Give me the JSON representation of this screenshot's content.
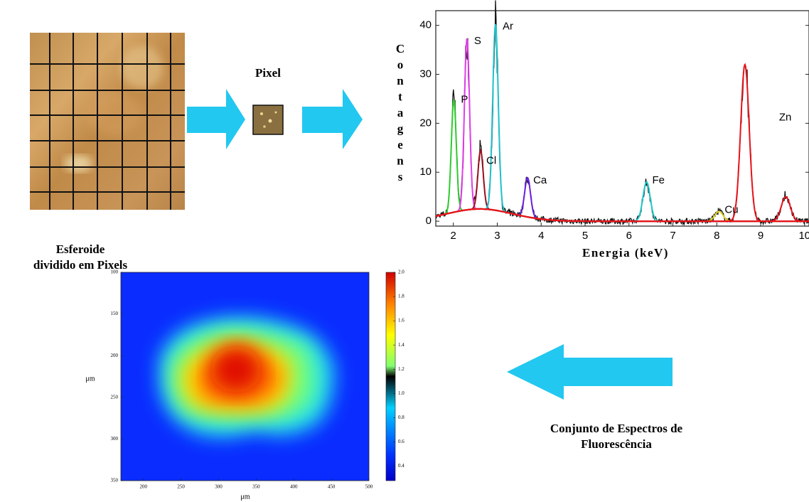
{
  "pixel_label": "Pixel",
  "spheroid_caption": [
    "Esferoide",
    "dividido em Pixels"
  ],
  "spectra_caption": [
    "Conjunto de Espectros de",
    "Fluorescência"
  ],
  "spectrum": {
    "type": "line",
    "y_label": "Contagens",
    "x_label": "Energia (keV)",
    "xlim": [
      1.6,
      10.1
    ],
    "ylim": [
      -1,
      43
    ],
    "xticks": [
      2,
      3,
      4,
      5,
      6,
      7,
      8,
      9,
      10
    ],
    "yticks": [
      0,
      10,
      20,
      30,
      40
    ],
    "background": {
      "energy": 2.6,
      "height": 2.5,
      "color": "#e8141a"
    },
    "peaks": [
      {
        "label": "P",
        "energy": 2.01,
        "height": 23,
        "color": "#2ecc2e"
      },
      {
        "label": "S",
        "energy": 2.31,
        "height": 35,
        "color": "#e040e8"
      },
      {
        "label": "Cl",
        "energy": 2.62,
        "height": 12,
        "color": "#9a1020"
      },
      {
        "label": "Ar",
        "energy": 2.96,
        "height": 38,
        "color": "#20c0c8"
      },
      {
        "label": "Ca",
        "energy": 3.69,
        "height": 8,
        "color": "#6a20e0"
      },
      {
        "label": "Fe",
        "energy": 6.4,
        "height": 8,
        "color": "#20c8c8"
      },
      {
        "label": "Cu",
        "energy": 8.05,
        "height": 2,
        "color": "#e0d020"
      },
      {
        "label": "Zn",
        "energy": 8.64,
        "height": 32,
        "color": "#e8141a"
      },
      {
        "label": null,
        "energy": 9.57,
        "height": 5,
        "color": "#e8141a"
      }
    ]
  },
  "heatmap": {
    "x_label": "μm",
    "y_label": "μm",
    "xlim": [
      170,
      500
    ],
    "ylim": [
      100,
      350
    ],
    "xticks": [
      200,
      250,
      300,
      350,
      400,
      450,
      500
    ],
    "yticks": [
      100,
      150,
      200,
      250,
      300,
      350
    ],
    "colorbar_lim": [
      0.28,
      2.0
    ],
    "colorbar_ticks": [
      0.4,
      0.6,
      0.8,
      {
        "value": 1.0,
        "label": "1.0"
      },
      1.2,
      1.4,
      1.6,
      1.8,
      {
        "value": 2.0,
        "label": "2.0"
      }
    ]
  }
}
